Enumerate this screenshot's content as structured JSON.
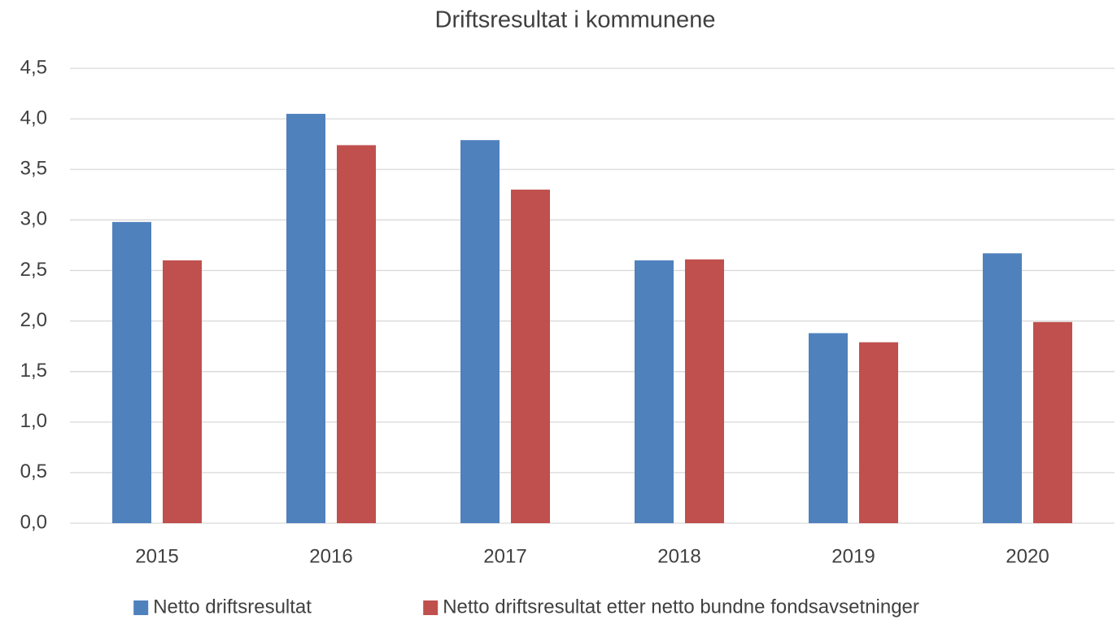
{
  "chart_data": {
    "type": "bar",
    "title": "Driftsresultat i kommunene",
    "categories": [
      "2015",
      "2016",
      "2017",
      "2018",
      "2019",
      "2020"
    ],
    "series": [
      {
        "name": "Netto driftsresultat",
        "color": "#4f81bd",
        "values": [
          2.98,
          4.05,
          3.79,
          2.6,
          1.88,
          2.67
        ]
      },
      {
        "name": "Netto driftsresultat etter netto bundne fondsavsetninger",
        "color": "#c0504d",
        "values": [
          2.6,
          3.74,
          3.3,
          2.61,
          1.79,
          1.99
        ]
      }
    ],
    "ylim": [
      0,
      4.5
    ],
    "yticks": [
      {
        "value": 0,
        "label": "0,0"
      },
      {
        "value": 0.5,
        "label": "0,5"
      },
      {
        "value": 1,
        "label": "1,0"
      },
      {
        "value": 1.5,
        "label": "1,5"
      },
      {
        "value": 2,
        "label": "2,0"
      },
      {
        "value": 2.5,
        "label": "2,5"
      },
      {
        "value": 3,
        "label": "3,0"
      },
      {
        "value": 3.5,
        "label": "3,5"
      },
      {
        "value": 4,
        "label": "4,0"
      },
      {
        "value": 4.5,
        "label": "4,5"
      }
    ],
    "grid": true,
    "legend": "bottom"
  }
}
